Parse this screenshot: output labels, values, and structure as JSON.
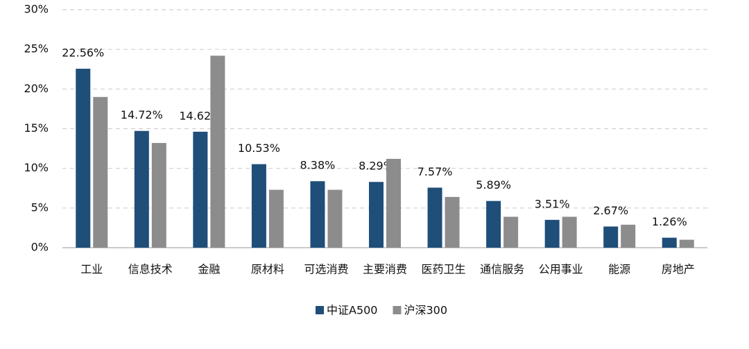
{
  "chart_data": {
    "type": "bar",
    "categories": [
      "工业",
      "信息技术",
      "金融",
      "原材料",
      "可选消费",
      "主要消费",
      "医药卫生",
      "通信服务",
      "公用事业",
      "能源",
      "房地产"
    ],
    "series": [
      {
        "name": "中证A500",
        "color": "#1f4e79",
        "values": [
          22.56,
          14.72,
          14.62,
          10.53,
          8.38,
          8.29,
          7.57,
          5.89,
          3.51,
          2.67,
          1.26
        ],
        "value_labels": [
          "22.56%",
          "14.72%",
          "14.62%",
          "10.53%",
          "8.38%",
          "8.29%",
          "7.57%",
          "5.89%",
          "3.51%",
          "2.67%",
          "1.26%"
        ]
      },
      {
        "name": "沪深300",
        "color": "#8c8c8c",
        "values": [
          19.0,
          13.2,
          24.2,
          7.3,
          7.3,
          11.2,
          6.4,
          3.9,
          3.9,
          2.9,
          1.0
        ]
      }
    ],
    "ylim": [
      0,
      30
    ],
    "yticks": [
      {
        "value": 0,
        "label": "0%"
      },
      {
        "value": 5,
        "label": "5%"
      },
      {
        "value": 10,
        "label": "10%"
      },
      {
        "value": 15,
        "label": "15%"
      },
      {
        "value": 20,
        "label": "20%"
      },
      {
        "value": 25,
        "label": "25%"
      },
      {
        "value": 30,
        "label": "30%"
      }
    ],
    "grid": true
  }
}
